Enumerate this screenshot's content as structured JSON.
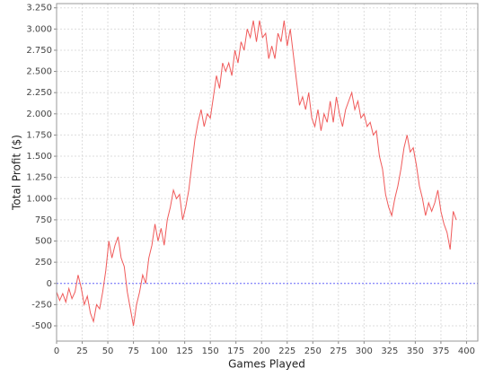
{
  "chart_data": {
    "type": "line",
    "x_label": "Games Played",
    "y_label": "Total Profit ($)",
    "x": [
      0,
      3,
      6,
      9,
      12,
      15,
      18,
      21,
      24,
      27,
      30,
      33,
      36,
      39,
      42,
      45,
      48,
      51,
      54,
      57,
      60,
      63,
      66,
      69,
      72,
      75,
      78,
      81,
      84,
      87,
      90,
      93,
      96,
      99,
      102,
      105,
      108,
      111,
      114,
      117,
      120,
      123,
      126,
      129,
      132,
      135,
      138,
      141,
      144,
      147,
      150,
      153,
      156,
      159,
      162,
      165,
      168,
      171,
      174,
      177,
      180,
      183,
      186,
      189,
      192,
      195,
      198,
      201,
      204,
      207,
      210,
      213,
      216,
      219,
      222,
      225,
      228,
      231,
      234,
      237,
      240,
      243,
      246,
      249,
      252,
      255,
      258,
      261,
      264,
      267,
      270,
      273,
      276,
      279,
      282,
      285,
      288,
      291,
      294,
      297,
      300,
      303,
      306,
      309,
      312,
      315,
      318,
      321,
      324,
      327,
      330,
      333,
      336,
      339,
      342,
      345,
      348,
      351,
      354,
      357,
      360,
      363,
      366,
      369,
      372,
      375,
      378,
      381,
      384,
      387,
      390
    ],
    "values": [
      -100,
      -200,
      -120,
      -220,
      -60,
      -180,
      -100,
      100,
      -50,
      -250,
      -150,
      -350,
      -450,
      -250,
      -300,
      -100,
      150,
      500,
      300,
      450,
      550,
      300,
      200,
      -100,
      -300,
      -500,
      -250,
      -100,
      100,
      0,
      300,
      450,
      700,
      500,
      650,
      450,
      750,
      900,
      1100,
      1000,
      1050,
      750,
      900,
      1100,
      1400,
      1700,
      1900,
      2050,
      1850,
      2000,
      1950,
      2200,
      2450,
      2300,
      2600,
      2500,
      2600,
      2450,
      2750,
      2600,
      2850,
      2750,
      3000,
      2900,
      3100,
      2850,
      3100,
      2900,
      2950,
      2650,
      2800,
      2650,
      2950,
      2850,
      3100,
      2800,
      3000,
      2700,
      2400,
      2100,
      2200,
      2050,
      2250,
      1950,
      1850,
      2050,
      1800,
      2000,
      1900,
      2150,
      1900,
      2200,
      2000,
      1850,
      2050,
      2150,
      2250,
      2050,
      2150,
      1950,
      2000,
      1850,
      1900,
      1750,
      1800,
      1500,
      1350,
      1050,
      900,
      800,
      1000,
      1150,
      1350,
      1600,
      1750,
      1550,
      1600,
      1400,
      1150,
      1000,
      800,
      950,
      850,
      950,
      1100,
      850,
      700,
      600,
      400,
      850,
      750
    ],
    "color": "#f05a5a",
    "zero_line": 0,
    "zero_line_color": "#6a6aff",
    "xlim": [
      0,
      411
    ],
    "xticks": [
      0,
      25,
      50,
      75,
      100,
      125,
      150,
      175,
      200,
      225,
      250,
      275,
      300,
      325,
      350,
      375,
      400
    ],
    "ylim": [
      -680,
      3300
    ],
    "yticks": [
      -500,
      -250,
      0,
      250,
      500,
      750,
      {
        "value": 1000,
        "label": "1.000"
      },
      {
        "value": 1250,
        "label": "1.250"
      },
      {
        "value": 1500,
        "label": "1.500"
      },
      {
        "value": 1750,
        "label": "1.750"
      },
      {
        "value": 2000,
        "label": "2.000"
      },
      {
        "value": 2250,
        "label": "2.250"
      },
      {
        "value": 2500,
        "label": "2.500"
      },
      {
        "value": 2750,
        "label": "2.750"
      },
      {
        "value": 3000,
        "label": "3.000"
      },
      {
        "value": 3250,
        "label": "3.250"
      }
    ],
    "grid": true
  }
}
